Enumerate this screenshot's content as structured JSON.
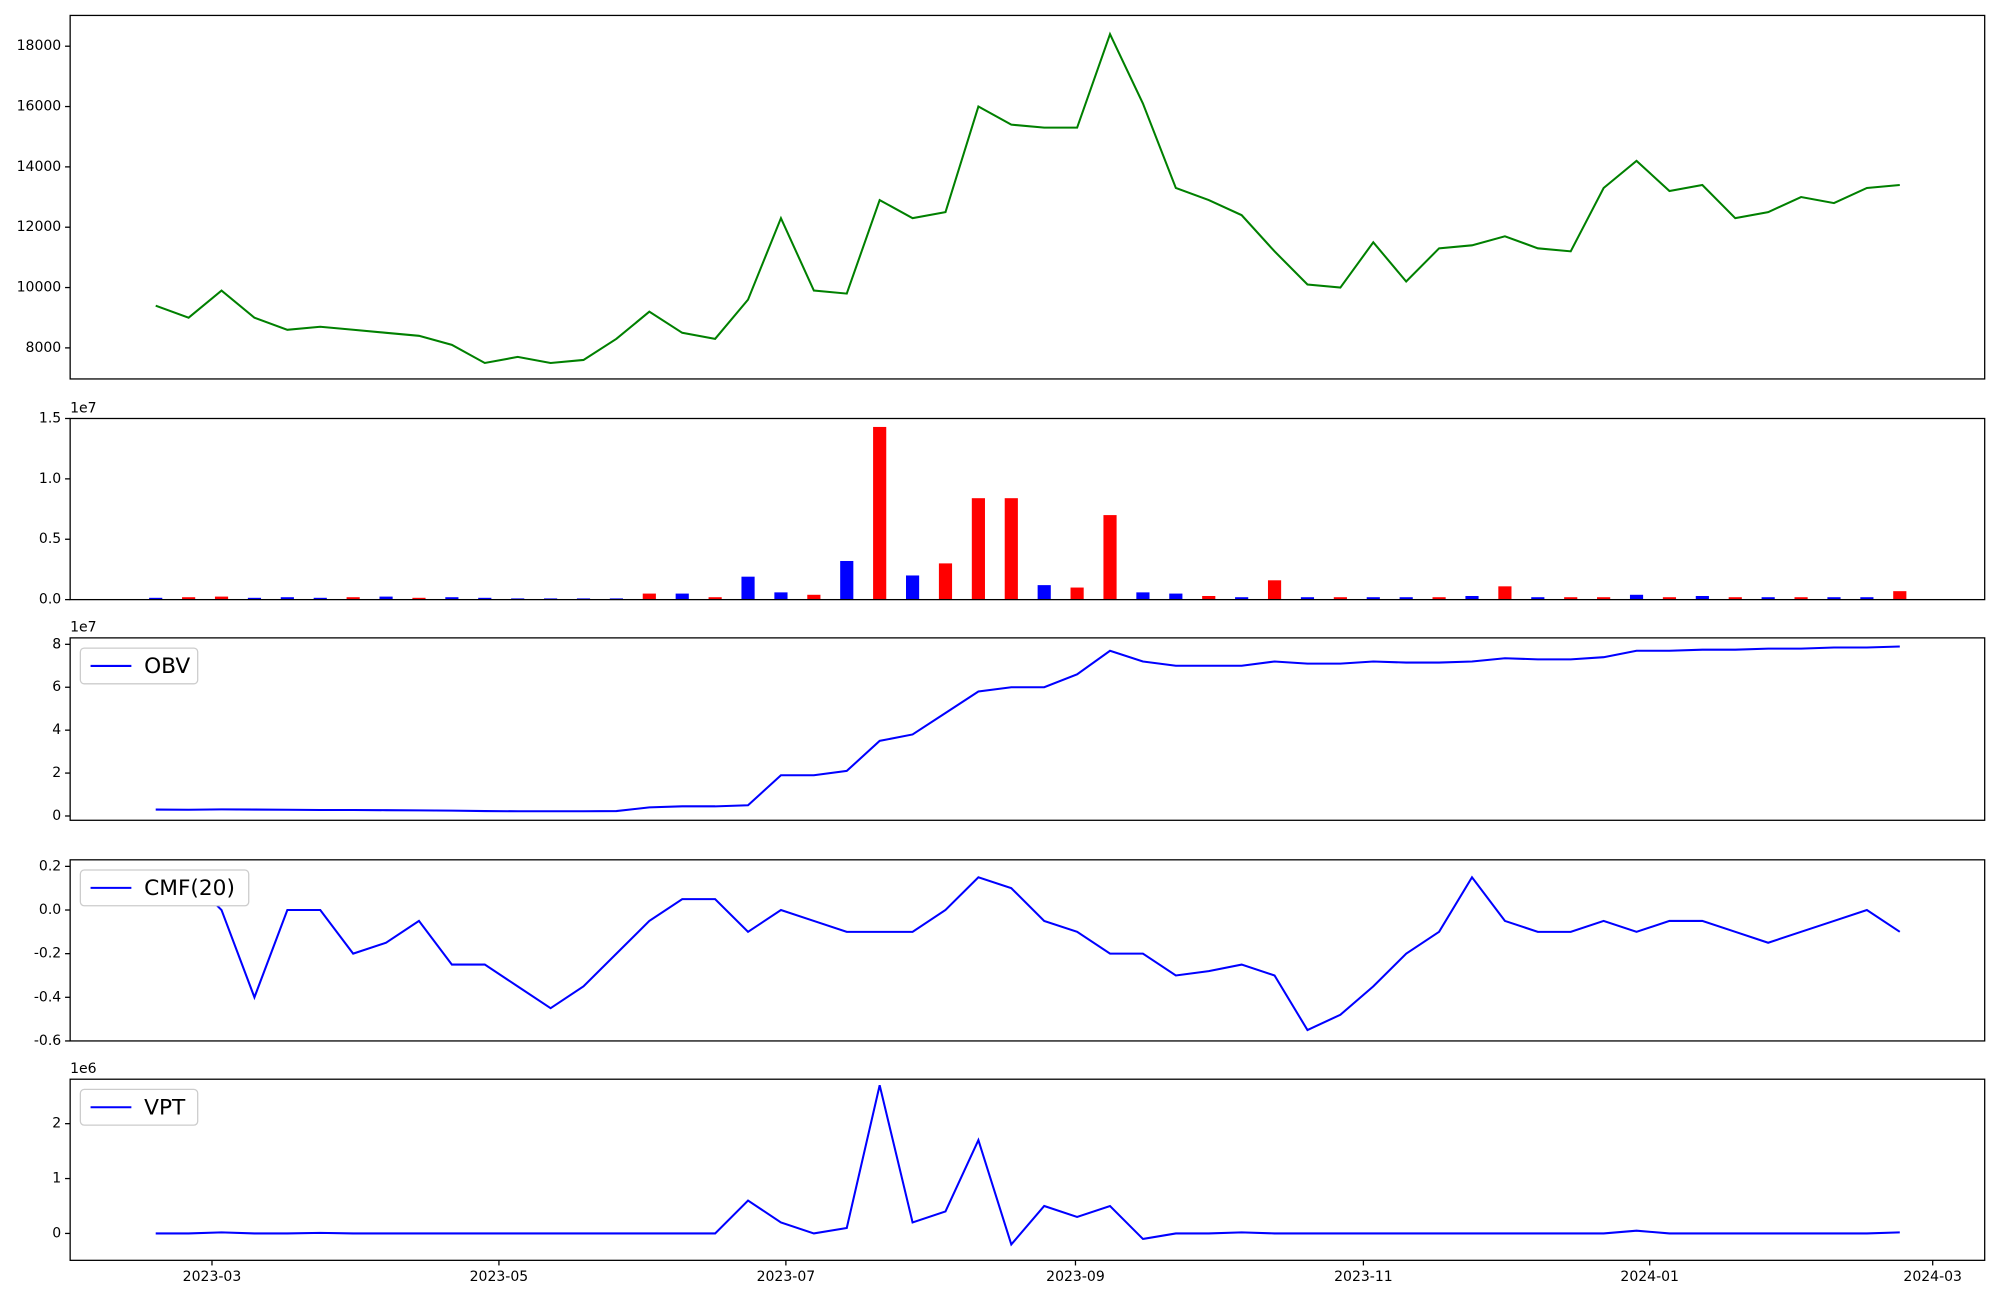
{
  "chart_data": [
    {
      "type": "line",
      "color": "green",
      "values": [
        9400,
        9000,
        9900,
        9000,
        8600,
        8700,
        8600,
        8500,
        8400,
        8100,
        7500,
        7700,
        7500,
        7600,
        8300,
        9200,
        8500,
        8300,
        9600,
        12300,
        9900,
        9800,
        12900,
        12300,
        12500,
        16000,
        15400,
        15300,
        15300,
        18400,
        16100,
        13300,
        12900,
        12400,
        11200,
        10100,
        10000,
        11500,
        10200,
        11300,
        11400,
        11700,
        11300,
        11200,
        13300,
        14200,
        13200,
        13400,
        12300,
        12500,
        13000,
        12800,
        13300,
        13400
      ],
      "ylim": [
        6970,
        19020
      ],
      "yticks": [
        8000,
        10000,
        12000,
        14000,
        16000,
        18000
      ]
    },
    {
      "type": "bar",
      "offset_label": "1e7",
      "values": [
        150000,
        200000,
        250000,
        150000,
        200000,
        150000,
        200000,
        250000,
        150000,
        200000,
        150000,
        100000,
        100000,
        100000,
        100000,
        500000,
        500000,
        200000,
        1900000,
        600000,
        400000,
        3200000,
        14300000,
        2000000,
        3000000,
        8400000,
        8400000,
        1200000,
        1000000,
        7000000,
        600000,
        500000,
        300000,
        200000,
        1600000,
        200000,
        200000,
        200000,
        200000,
        200000,
        300000,
        1100000,
        200000,
        200000,
        200000,
        400000,
        200000,
        300000,
        200000,
        200000,
        200000,
        200000,
        200000,
        700000
      ],
      "colors": [
        "blue",
        "red",
        "red",
        "blue",
        "blue",
        "blue",
        "red",
        "blue",
        "red",
        "blue",
        "blue",
        "blue",
        "blue",
        "blue",
        "blue",
        "red",
        "blue",
        "red",
        "blue",
        "blue",
        "red",
        "blue",
        "red",
        "blue",
        "red",
        "red",
        "red",
        "blue",
        "red",
        "red",
        "blue",
        "blue",
        "red",
        "blue",
        "red",
        "blue",
        "red",
        "blue",
        "blue",
        "red",
        "blue",
        "red",
        "blue",
        "red",
        "red",
        "blue",
        "red",
        "blue",
        "red",
        "blue",
        "red",
        "blue",
        "blue",
        "red"
      ],
      "ylim": [
        0,
        15000000
      ],
      "yticks": [
        {
          "value": 0,
          "label": "0.0"
        },
        {
          "value": 5000000,
          "label": "0.5"
        },
        {
          "value": 10000000,
          "label": "1.0"
        },
        {
          "value": 15000000,
          "label": "1.5"
        }
      ]
    },
    {
      "type": "line",
      "color": "blue",
      "offset_label": "1e7",
      "legend": "upper left",
      "series": [
        {
          "name": "OBV",
          "color": "blue",
          "values": [
            3000000,
            2900000,
            3100000,
            3000000,
            2900000,
            2800000,
            2800000,
            2700000,
            2600000,
            2500000,
            2300000,
            2200000,
            2200000,
            2200000,
            2300000,
            4000000,
            4500000,
            4500000,
            5000000,
            19000000,
            19000000,
            21000000,
            35000000,
            38000000,
            48000000,
            58000000,
            60000000,
            60000000,
            66000000,
            77000000,
            72000000,
            70000000,
            70000000,
            70000000,
            72000000,
            71000000,
            71000000,
            72000000,
            71500000,
            71500000,
            72000000,
            73500000,
            73000000,
            73000000,
            74000000,
            77000000,
            77000000,
            77500000,
            77500000,
            78000000,
            78000000,
            78500000,
            78500000,
            79000000
          ]
        }
      ],
      "ylim": [
        -2000000,
        83000000
      ],
      "yticks": [
        0,
        {
          "value": 20000000,
          "label": "2"
        },
        {
          "value": 40000000,
          "label": "4"
        },
        {
          "value": 60000000,
          "label": "6"
        },
        {
          "value": 80000000,
          "label": "8"
        }
      ]
    },
    {
      "type": "line",
      "color": "blue",
      "legend": "upper left",
      "series": [
        {
          "name": "CMF(20)",
          "color": "blue",
          "values": [
            0.15,
            0.15,
            0.0,
            -0.4,
            0.0,
            0.0,
            -0.2,
            -0.15,
            -0.05,
            -0.25,
            -0.25,
            -0.35,
            -0.45,
            -0.35,
            -0.2,
            -0.05,
            0.05,
            0.05,
            -0.1,
            0.0,
            -0.05,
            -0.1,
            -0.1,
            -0.1,
            0.0,
            0.15,
            0.1,
            -0.05,
            -0.1,
            -0.2,
            -0.2,
            -0.3,
            -0.28,
            -0.25,
            -0.3,
            -0.55,
            -0.48,
            -0.35,
            -0.2,
            -0.1,
            0.15,
            -0.05,
            -0.1,
            -0.1,
            -0.05,
            -0.1,
            -0.05,
            -0.05,
            -0.1,
            -0.15,
            -0.1,
            -0.05,
            0.0,
            -0.1
          ]
        }
      ],
      "ylim": [
        -0.6,
        0.23
      ],
      "yticks": [
        -0.6,
        -0.4,
        -0.2,
        {
          "value": 0,
          "label": "0.0"
        },
        0.2
      ]
    },
    {
      "type": "line",
      "color": "blue",
      "offset_label": "1e6",
      "legend": "upper left",
      "series": [
        {
          "name": "VPT",
          "color": "blue",
          "values": [
            0,
            0,
            20000,
            0,
            0,
            10000,
            0,
            0,
            0,
            0,
            0,
            0,
            0,
            0,
            0,
            0,
            0,
            0,
            600000,
            200000,
            0,
            100000,
            2700000,
            200000,
            400000,
            1700000,
            -200000,
            500000,
            300000,
            500000,
            -100000,
            0,
            0,
            20000,
            0,
            0,
            0,
            0,
            0,
            0,
            0,
            0,
            0,
            0,
            0,
            50000,
            0,
            0,
            0,
            0,
            0,
            0,
            0,
            20000
          ]
        }
      ],
      "ylim": [
        -490000,
        2810000
      ],
      "yticks": [
        0,
        {
          "value": 1000000,
          "label": "1"
        },
        {
          "value": 2000000,
          "label": "2"
        }
      ],
      "xlim": [
        -2.6,
        55.58
      ],
      "xticks": [
        {
          "value": 1.71,
          "label": "2023-03"
        },
        {
          "value": 10.43,
          "label": "2023-05"
        },
        {
          "value": 19.15,
          "label": "2023-07"
        },
        {
          "value": 27.95,
          "label": "2023-09"
        },
        {
          "value": 36.7,
          "label": "2023-11"
        },
        {
          "value": 45.4,
          "label": "2024-01"
        },
        {
          "value": 54.0,
          "label": "2024-03"
        }
      ]
    }
  ]
}
